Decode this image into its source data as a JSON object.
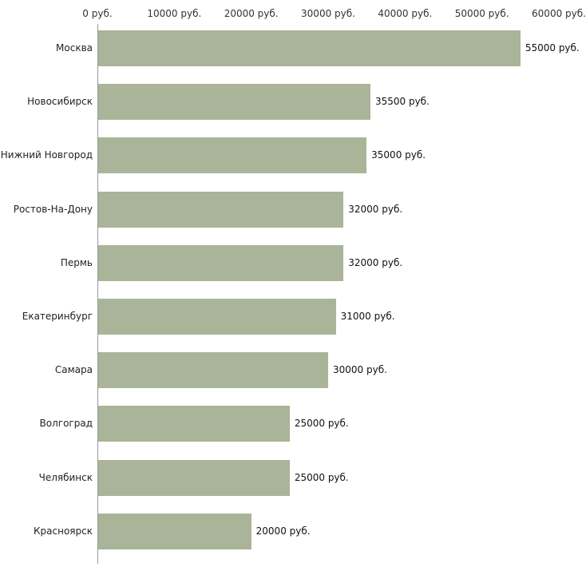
{
  "chart_data": {
    "type": "bar",
    "orientation": "horizontal",
    "title": "",
    "xlabel": "",
    "ylabel": "",
    "xlim": [
      0,
      60000
    ],
    "grid": false,
    "legend": false,
    "bar_color": "#aab498",
    "x_ticks": [
      {
        "label": "0 руб.",
        "value": 0
      },
      {
        "label": "10000 руб.",
        "value": 10000
      },
      {
        "label": "20000 руб.",
        "value": 20000
      },
      {
        "label": "30000 руб.",
        "value": 30000
      },
      {
        "label": "40000 руб.",
        "value": 40000
      },
      {
        "label": "50000 руб.",
        "value": 50000
      },
      {
        "label": "60000 руб.",
        "value": 60000
      }
    ],
    "categories": [
      "Москва",
      "Новосибирск",
      "Нижний Новгород",
      "Ростов-На-Дону",
      "Пермь",
      "Екатеринбург",
      "Самара",
      "Волгоград",
      "Челябинск",
      "Красноярск"
    ],
    "values": [
      55000,
      35500,
      35000,
      32000,
      32000,
      31000,
      30000,
      25000,
      25000,
      20000
    ],
    "value_labels": [
      "55000 руб.",
      "35500 руб.",
      "35000 руб.",
      "32000 руб.",
      "32000 руб.",
      "31000 руб.",
      "30000 руб.",
      "25000 руб.",
      "25000 руб.",
      "20000 руб."
    ]
  }
}
